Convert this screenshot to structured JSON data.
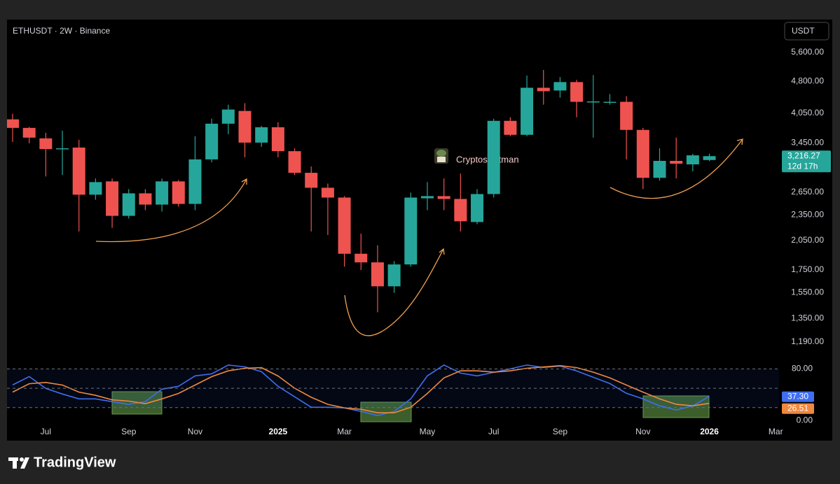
{
  "chart_data": [
    {
      "type": "candlestick",
      "title": "ETHUSDT · 2W · Binance",
      "currency": "USDT",
      "watermark": "CryptosBatman",
      "open": [
        3916,
        3741,
        3537,
        3341,
        3367,
        2617,
        2810,
        2337,
        2636,
        2482,
        2810,
        2491,
        3161,
        3826,
        4096,
        3458,
        3754,
        3303,
        2942,
        2716,
        2577,
        1908,
        1822,
        1603,
        1802,
        2567,
        2597,
        2558,
        2261,
        2626,
        3885,
        3605,
        4637,
        4569,
        4780,
        4301,
        4295,
        4301,
        3701,
        2864,
        3136,
        3078,
        3150
      ],
      "high": [
        4035,
        3760,
        3645,
        3687,
        3510,
        2854,
        2854,
        2696,
        2696,
        2854,
        2832,
        3577,
        3929,
        4236,
        4270,
        3782,
        3854,
        3354,
        3043,
        2778,
        2597,
        2125,
        1997,
        1835,
        2646,
        2799,
        2854,
        2929,
        2696,
        3929,
        3960,
        4950,
        5100,
        4909,
        4837,
        4965,
        4483,
        4433,
        3741,
        3354,
        3551,
        3255,
        3260
      ],
      "low": [
        3470,
        3446,
        2885,
        2907,
        2150,
        2548,
        2192,
        2304,
        2409,
        2391,
        2455,
        2409,
        3112,
        3617,
        3196,
        3381,
        3196,
        2907,
        2150,
        2109,
        1781,
        1748,
        1395,
        1548,
        1781,
        2409,
        2409,
        2150,
        2235,
        2577,
        3577,
        3577,
        4236,
        4399,
        3960,
        3551,
        4236,
        3161,
        2696,
        2821,
        2854,
        2965,
        3130
      ],
      "close": [
        3741,
        3551,
        3341,
        3354,
        2617,
        2799,
        2337,
        2636,
        2482,
        2810,
        2491,
        3161,
        3826,
        4127,
        3458,
        3754,
        3303,
        2942,
        2716,
        2577,
        1908,
        1822,
        1603,
        1802,
        2577,
        2597,
        2558,
        2270,
        2626,
        3885,
        3605,
        4637,
        4552,
        4780,
        4301,
        4310,
        4301,
        3701,
        2864,
        3136,
        3089,
        3230,
        3216.27
      ],
      "last_close_label": "3,216.27",
      "countdown": "12d 17h",
      "up_color": "#26a69a",
      "down_color": "#ef5350",
      "log_scale": true,
      "ylim": [
        1100,
        6150
      ],
      "yticks": [
        {
          "value": 5600,
          "label": "5,600.00"
        },
        {
          "value": 4800,
          "label": "4,800.00"
        },
        {
          "value": 4050,
          "label": "4,050.00"
        },
        {
          "value": 3450,
          "label": "3,450.00"
        },
        {
          "value": 2650,
          "label": "2,650.00"
        },
        {
          "value": 2350,
          "label": "2,350.00"
        },
        {
          "value": 2050,
          "label": "2,050.00"
        },
        {
          "value": 1750,
          "label": "1,750.00"
        },
        {
          "value": 1550,
          "label": "1,550.00"
        },
        {
          "value": 1350,
          "label": "1,350.00"
        },
        {
          "value": 1190,
          "label": "1,190.00"
        }
      ],
      "xlim": [
        -0.76,
        46.2
      ],
      "xticks": [
        {
          "value": 2,
          "label": "Jul"
        },
        {
          "value": 7,
          "label": "Sep"
        },
        {
          "value": 11,
          "label": "Nov"
        },
        {
          "value": 16,
          "label": "2025"
        },
        {
          "value": 20,
          "label": "Mar"
        },
        {
          "value": 25,
          "label": "May"
        },
        {
          "value": 29,
          "label": "Jul"
        },
        {
          "value": 33,
          "label": "Sep"
        },
        {
          "value": 38,
          "label": "Nov"
        },
        {
          "value": 42,
          "label": "2026"
        },
        {
          "value": 46,
          "label": "Mar"
        }
      ]
    },
    {
      "type": "line",
      "ylim": [
        -2,
        87
      ],
      "yticks": [
        {
          "value": 80,
          "label": "80.00"
        },
        {
          "value": 0,
          "label": "0.00"
        }
      ],
      "levels": [
        80,
        50,
        20
      ],
      "series": [
        {
          "color": "#3f6ef0",
          "last_label": "37.30",
          "values": [
            55.1,
            68.1,
            49.7,
            41.1,
            33.5,
            33.5,
            29.2,
            24.9,
            29.2,
            48.6,
            53,
            69.2,
            72.4,
            86,
            83.2,
            75.7,
            53,
            36.8,
            20.5,
            20.5,
            19.5,
            14.1,
            7.6,
            14.1,
            33.5,
            69.2,
            86,
            73.5,
            69.2,
            74.6,
            80,
            86,
            82.2,
            84.3,
            76.8,
            67,
            57.3,
            42.2,
            33.5,
            22.7,
            16.2,
            22.7,
            37.3
          ]
        },
        {
          "color": "#f0883e",
          "last_label": "26.51",
          "values": [
            44,
            57,
            59,
            55,
            44,
            39,
            32,
            30,
            26,
            33.5,
            42,
            55,
            68,
            77,
            81,
            82,
            69,
            50,
            36,
            25,
            19.5,
            17.3,
            11.9,
            11.9,
            20.5,
            42,
            66,
            77,
            77,
            75,
            77,
            81,
            83,
            85,
            82,
            75,
            66,
            55,
            44,
            33.5,
            25,
            22.7,
            26.51
          ]
        }
      ]
    }
  ],
  "footer": {
    "brand": "TradingView"
  }
}
